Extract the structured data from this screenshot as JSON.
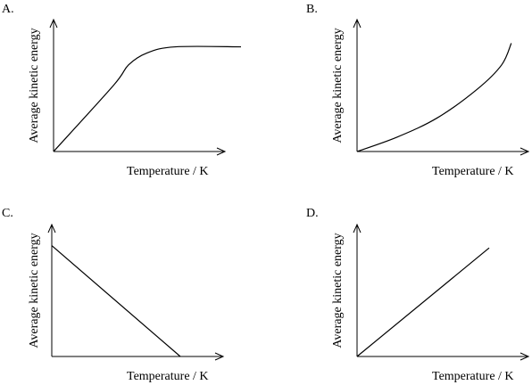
{
  "chart_data": [
    {
      "label": "A.",
      "type": "line",
      "xlabel": "Temperature / K",
      "ylabel": "Average kinetic energy",
      "xlim": [
        0,
        1
      ],
      "ylim": [
        0,
        1
      ],
      "points": [
        [
          0,
          0
        ],
        [
          0.32,
          0.55
        ],
        [
          0.4,
          0.72
        ],
        [
          0.5,
          0.82
        ],
        [
          0.65,
          0.87
        ],
        [
          1,
          0.87
        ]
      ]
    },
    {
      "label": "B.",
      "type": "line",
      "xlabel": "Temperature / K",
      "ylabel": "Average kinetic energy",
      "xlim": [
        0,
        1
      ],
      "ylim": [
        0,
        1
      ],
      "points": [
        [
          0,
          0
        ],
        [
          0.25,
          0.12
        ],
        [
          0.5,
          0.28
        ],
        [
          0.75,
          0.52
        ],
        [
          0.9,
          0.72
        ],
        [
          0.96,
          0.9
        ]
      ]
    },
    {
      "label": "C.",
      "type": "line",
      "xlabel": "Temperature / K",
      "ylabel": "Average kinetic energy",
      "xlim": [
        0,
        1
      ],
      "ylim": [
        0,
        1
      ],
      "points": [
        [
          0,
          0.87
        ],
        [
          0.8,
          0
        ]
      ]
    },
    {
      "label": "D.",
      "type": "line",
      "xlabel": "Temperature / K",
      "ylabel": "Average kinetic energy",
      "xlim": [
        0,
        1
      ],
      "ylim": [
        0,
        1
      ],
      "points": [
        [
          0,
          0
        ],
        [
          0.8,
          0.87
        ]
      ]
    }
  ]
}
